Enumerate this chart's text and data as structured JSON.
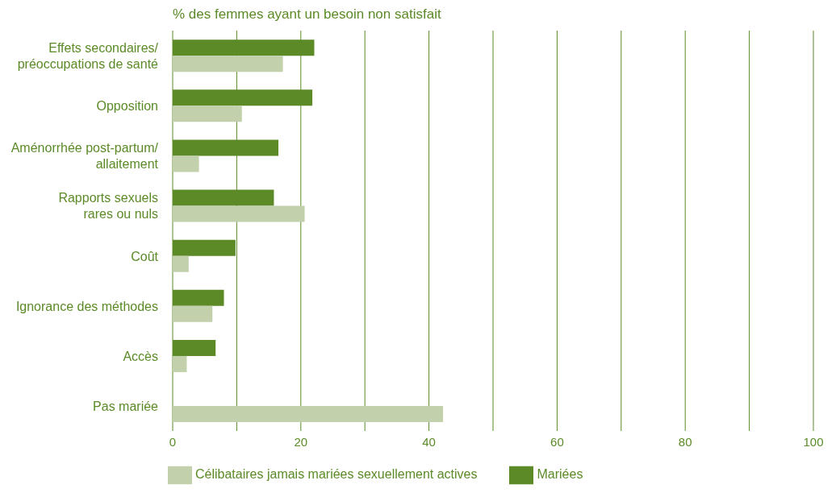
{
  "chart_data": {
    "type": "bar",
    "orientation": "horizontal",
    "title": "% des femmes ayant un besoin non satisfait",
    "categories": [
      "Effets secondaires/\npréoccupations de santé",
      "Opposition",
      "Aménorrhée post-partum/\nallaitement",
      "Rapports sexuels\nrares ou nuls",
      "Coût",
      "Ignorance des méthodes",
      "Accès",
      "Pas mariée"
    ],
    "series": [
      {
        "name": "Mariées",
        "color": "#5b8a27",
        "values": [
          22.1,
          21.8,
          16.5,
          15.8,
          9.8,
          8.0,
          6.7,
          null
        ]
      },
      {
        "name": "Célibataires jamais mariées sexuellement actives",
        "color": "#c2d0ac",
        "values": [
          17.2,
          10.8,
          4.1,
          20.6,
          2.5,
          6.2,
          2.2,
          42.2
        ]
      }
    ],
    "xlim": [
      0,
      100
    ],
    "xticks": [
      0,
      {
        "value": 10,
        "label": null
      },
      20,
      {
        "value": 30,
        "label": null
      },
      40,
      {
        "value": 50,
        "label": null
      },
      60,
      {
        "value": 70,
        "label": null
      },
      80,
      {
        "value": 90,
        "label": null
      },
      100
    ],
    "grid": "x",
    "legend": "bottom left"
  }
}
